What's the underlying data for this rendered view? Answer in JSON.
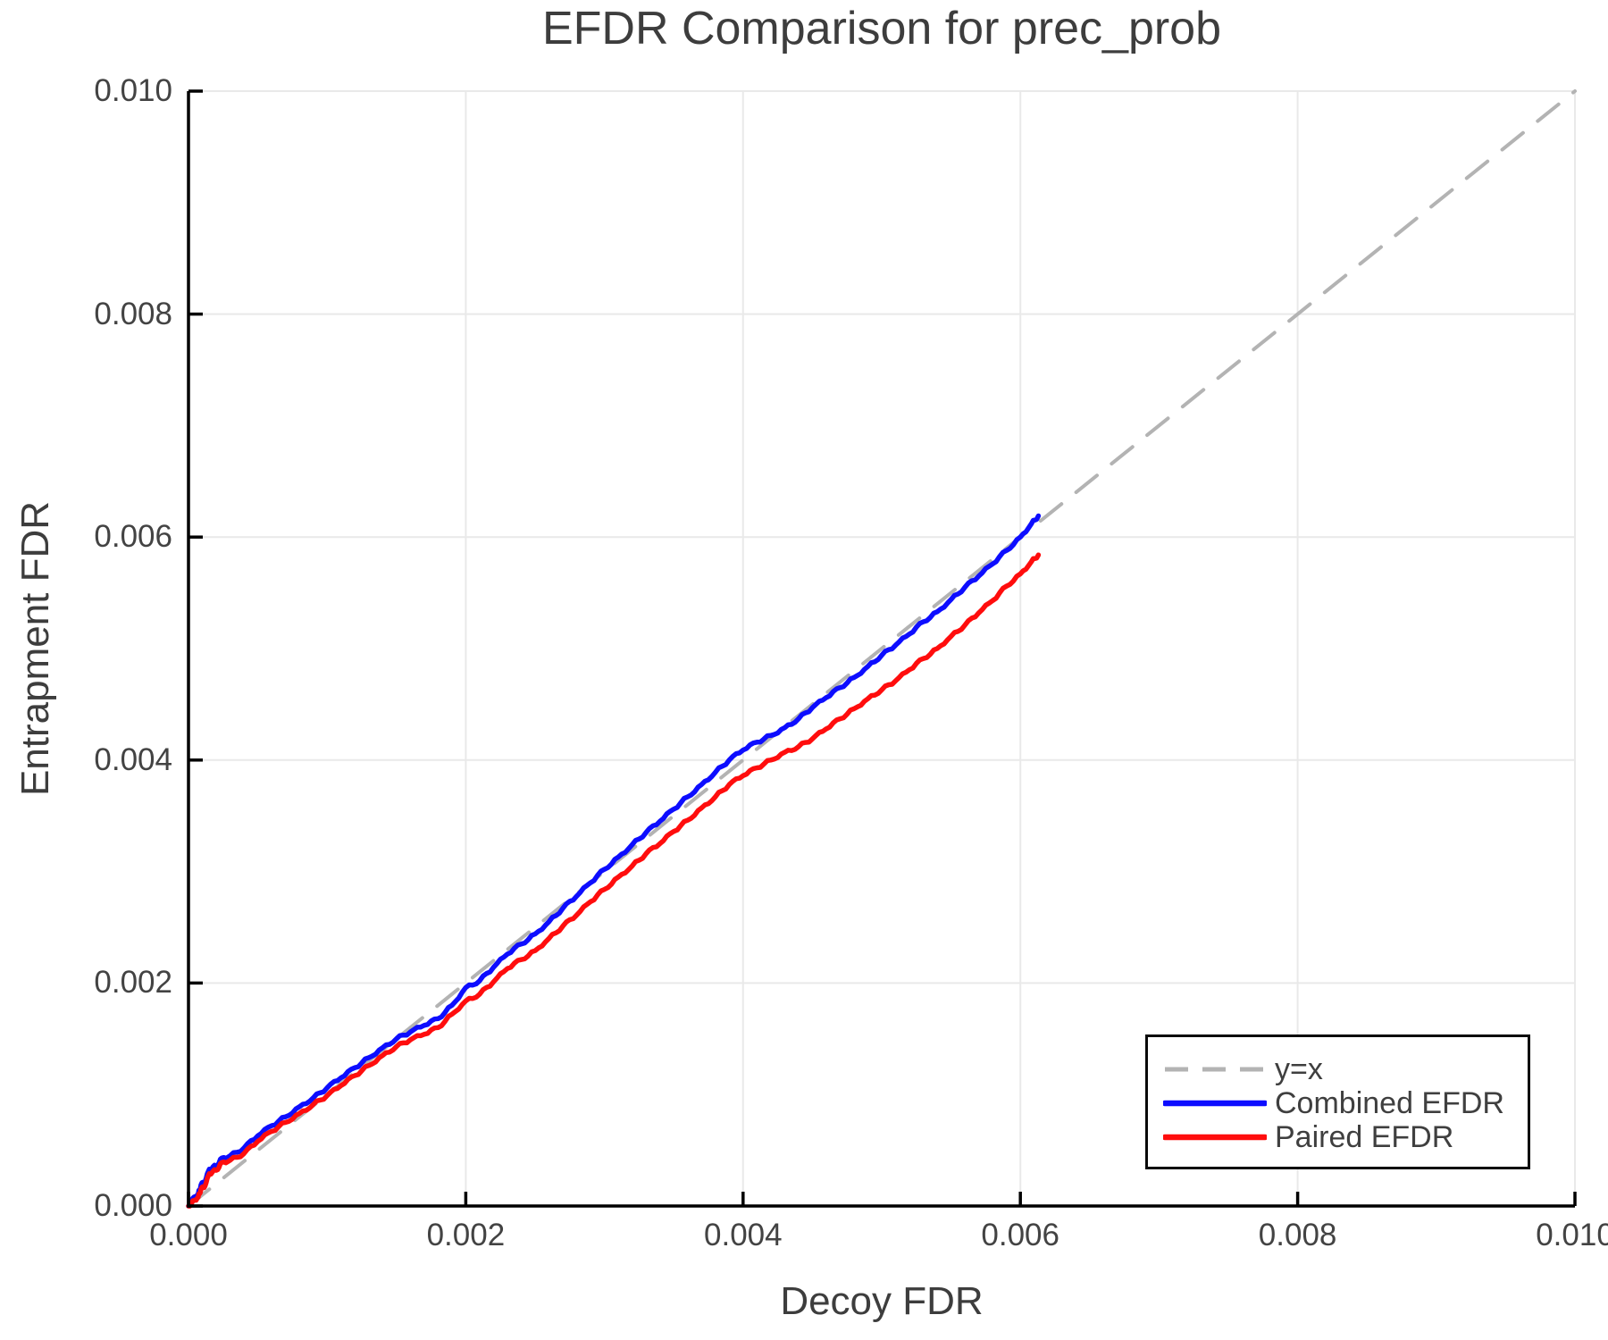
{
  "figure": {
    "background": "#ffffff"
  },
  "chart_data": {
    "type": "line",
    "title": "EFDR Comparison for prec_prob",
    "xlabel": "Decoy FDR",
    "ylabel": "Entrapment FDR",
    "xlim": [
      0.0,
      0.01
    ],
    "ylim": [
      0.0,
      0.01
    ],
    "grid": true,
    "xticks": {
      "values": [
        0.0,
        0.002,
        0.004,
        0.006,
        0.008,
        0.01
      ],
      "labels": [
        "0.000",
        "0.002",
        "0.004",
        "0.006",
        "0.008",
        "0.010"
      ]
    },
    "yticks": {
      "values": [
        0.0,
        0.002,
        0.004,
        0.006,
        0.008,
        0.01
      ],
      "labels": [
        "0.000",
        "0.002",
        "0.004",
        "0.006",
        "0.008",
        "0.010"
      ]
    },
    "styles": {
      "grid_color": "#e9e9e9",
      "spine_color": "#000000",
      "tick_color": "#000000",
      "title_color": "#3d3d3d",
      "tick_label_color": "#434343",
      "legend_border_color": "#0a0a0a"
    },
    "legend": {
      "position": "lower-right",
      "entries": [
        {
          "label": "y=x",
          "color": "#b3b3b3",
          "dashed": true
        },
        {
          "label": "Combined EFDR",
          "color": "#0d0dff",
          "dashed": false
        },
        {
          "label": "Paired EFDR",
          "color": "#ff0d0d",
          "dashed": false
        }
      ]
    },
    "series": [
      {
        "name": "y=x",
        "color": "#b3b3b3",
        "dashed": true,
        "width": 4,
        "wiggle": false,
        "points": [
          [
            0.0,
            0.0
          ],
          [
            0.01,
            0.01
          ]
        ]
      },
      {
        "name": "Combined EFDR",
        "color": "#0d0dff",
        "dashed": false,
        "width": 5.5,
        "wiggle": true,
        "points": [
          [
            0.0,
            0.0
          ],
          [
            4e-05,
            8e-05
          ],
          [
            7e-05,
            0.00011
          ],
          [
            9e-05,
            0.00019
          ],
          [
            0.00012,
            0.00022
          ],
          [
            0.00015,
            0.00033
          ],
          [
            0.0002,
            0.00036
          ],
          [
            0.00024,
            0.00043
          ],
          [
            0.0003,
            0.00045
          ],
          [
            0.0004,
            0.00052
          ],
          [
            0.0005,
            0.00063
          ],
          [
            0.0006,
            0.00072
          ],
          [
            0.0007,
            0.0008
          ],
          [
            0.0008,
            0.00089
          ],
          [
            0.0009,
            0.00097
          ],
          [
            0.001,
            0.00106
          ],
          [
            0.0011,
            0.00115
          ],
          [
            0.0012,
            0.00124
          ],
          [
            0.0013,
            0.00133
          ],
          [
            0.0014,
            0.00142
          ],
          [
            0.0015,
            0.0015
          ],
          [
            0.0016,
            0.00156
          ],
          [
            0.0017,
            0.00162
          ],
          [
            0.0018,
            0.00168
          ],
          [
            0.0019,
            0.0018
          ],
          [
            0.002,
            0.00196
          ],
          [
            0.0021,
            0.00202
          ],
          [
            0.0022,
            0.00214
          ],
          [
            0.0023,
            0.00226
          ],
          [
            0.0024,
            0.00235
          ],
          [
            0.0025,
            0.00244
          ],
          [
            0.0026,
            0.00255
          ],
          [
            0.0027,
            0.00267
          ],
          [
            0.0028,
            0.00278
          ],
          [
            0.0029,
            0.0029
          ],
          [
            0.003,
            0.00302
          ],
          [
            0.0031,
            0.00313
          ],
          [
            0.0032,
            0.00324
          ],
          [
            0.0033,
            0.00335
          ],
          [
            0.0034,
            0.00345
          ],
          [
            0.0035,
            0.00356
          ],
          [
            0.0036,
            0.00367
          ],
          [
            0.0037,
            0.00378
          ],
          [
            0.0038,
            0.00389
          ],
          [
            0.0039,
            0.004
          ],
          [
            0.004,
            0.00409
          ],
          [
            0.0041,
            0.00416
          ],
          [
            0.0042,
            0.00422
          ],
          [
            0.0043,
            0.00429
          ],
          [
            0.0044,
            0.00437
          ],
          [
            0.0045,
            0.00447
          ],
          [
            0.0046,
            0.00456
          ],
          [
            0.0047,
            0.00465
          ],
          [
            0.0048,
            0.00474
          ],
          [
            0.0049,
            0.00484
          ],
          [
            0.005,
            0.00494
          ],
          [
            0.0051,
            0.00503
          ],
          [
            0.0052,
            0.00513
          ],
          [
            0.0053,
            0.00524
          ],
          [
            0.0054,
            0.00533
          ],
          [
            0.0055,
            0.00544
          ],
          [
            0.0056,
            0.00555
          ],
          [
            0.0057,
            0.00565
          ],
          [
            0.0058,
            0.00576
          ],
          [
            0.0059,
            0.00588
          ],
          [
            0.006,
            0.006
          ],
          [
            0.00608,
            0.00612
          ],
          [
            0.00613,
            0.00619
          ]
        ]
      },
      {
        "name": "Paired EFDR",
        "color": "#ff0d0d",
        "dashed": false,
        "width": 5.5,
        "wiggle": true,
        "points": [
          [
            0.0,
            0.0
          ],
          [
            4e-05,
            5e-05
          ],
          [
            7e-05,
            8e-05
          ],
          [
            9e-05,
            0.00015
          ],
          [
            0.00012,
            0.00018
          ],
          [
            0.00015,
            0.00029
          ],
          [
            0.0002,
            0.00032
          ],
          [
            0.00024,
            0.00039
          ],
          [
            0.0003,
            0.00041
          ],
          [
            0.0004,
            0.00047
          ],
          [
            0.0005,
            0.00058
          ],
          [
            0.0006,
            0.00067
          ],
          [
            0.0007,
            0.00075
          ],
          [
            0.0008,
            0.00083
          ],
          [
            0.0009,
            0.00091
          ],
          [
            0.001,
            0.00099
          ],
          [
            0.0011,
            0.00108
          ],
          [
            0.0012,
            0.00117
          ],
          [
            0.0013,
            0.00126
          ],
          [
            0.0014,
            0.00135
          ],
          [
            0.0015,
            0.00143
          ],
          [
            0.0016,
            0.00149
          ],
          [
            0.0017,
            0.00154
          ],
          [
            0.0018,
            0.0016
          ],
          [
            0.0019,
            0.00172
          ],
          [
            0.002,
            0.00184
          ],
          [
            0.0021,
            0.0019
          ],
          [
            0.0022,
            0.00201
          ],
          [
            0.0023,
            0.00213
          ],
          [
            0.0024,
            0.00221
          ],
          [
            0.0025,
            0.00229
          ],
          [
            0.0026,
            0.0024
          ],
          [
            0.0027,
            0.00251
          ],
          [
            0.0028,
            0.00261
          ],
          [
            0.0029,
            0.00273
          ],
          [
            0.003,
            0.00284
          ],
          [
            0.0031,
            0.00295
          ],
          [
            0.0032,
            0.00305
          ],
          [
            0.0033,
            0.00316
          ],
          [
            0.0034,
            0.00325
          ],
          [
            0.0035,
            0.00336
          ],
          [
            0.0036,
            0.00346
          ],
          [
            0.0037,
            0.00357
          ],
          [
            0.0038,
            0.00367
          ],
          [
            0.0039,
            0.00378
          ],
          [
            0.004,
            0.00386
          ],
          [
            0.0041,
            0.00393
          ],
          [
            0.0042,
            0.004
          ],
          [
            0.0043,
            0.00407
          ],
          [
            0.0044,
            0.00412
          ],
          [
            0.0045,
            0.00419
          ],
          [
            0.0046,
            0.00428
          ],
          [
            0.0047,
            0.00437
          ],
          [
            0.0048,
            0.00446
          ],
          [
            0.0049,
            0.00455
          ],
          [
            0.005,
            0.00463
          ],
          [
            0.0051,
            0.00471
          ],
          [
            0.0052,
            0.00481
          ],
          [
            0.0053,
            0.00491
          ],
          [
            0.0054,
            0.005
          ],
          [
            0.0055,
            0.00511
          ],
          [
            0.0056,
            0.00521
          ],
          [
            0.0057,
            0.00532
          ],
          [
            0.0058,
            0.00543
          ],
          [
            0.0059,
            0.00556
          ],
          [
            0.006,
            0.00567
          ],
          [
            0.00608,
            0.00578
          ],
          [
            0.00613,
            0.00584
          ]
        ]
      }
    ]
  }
}
